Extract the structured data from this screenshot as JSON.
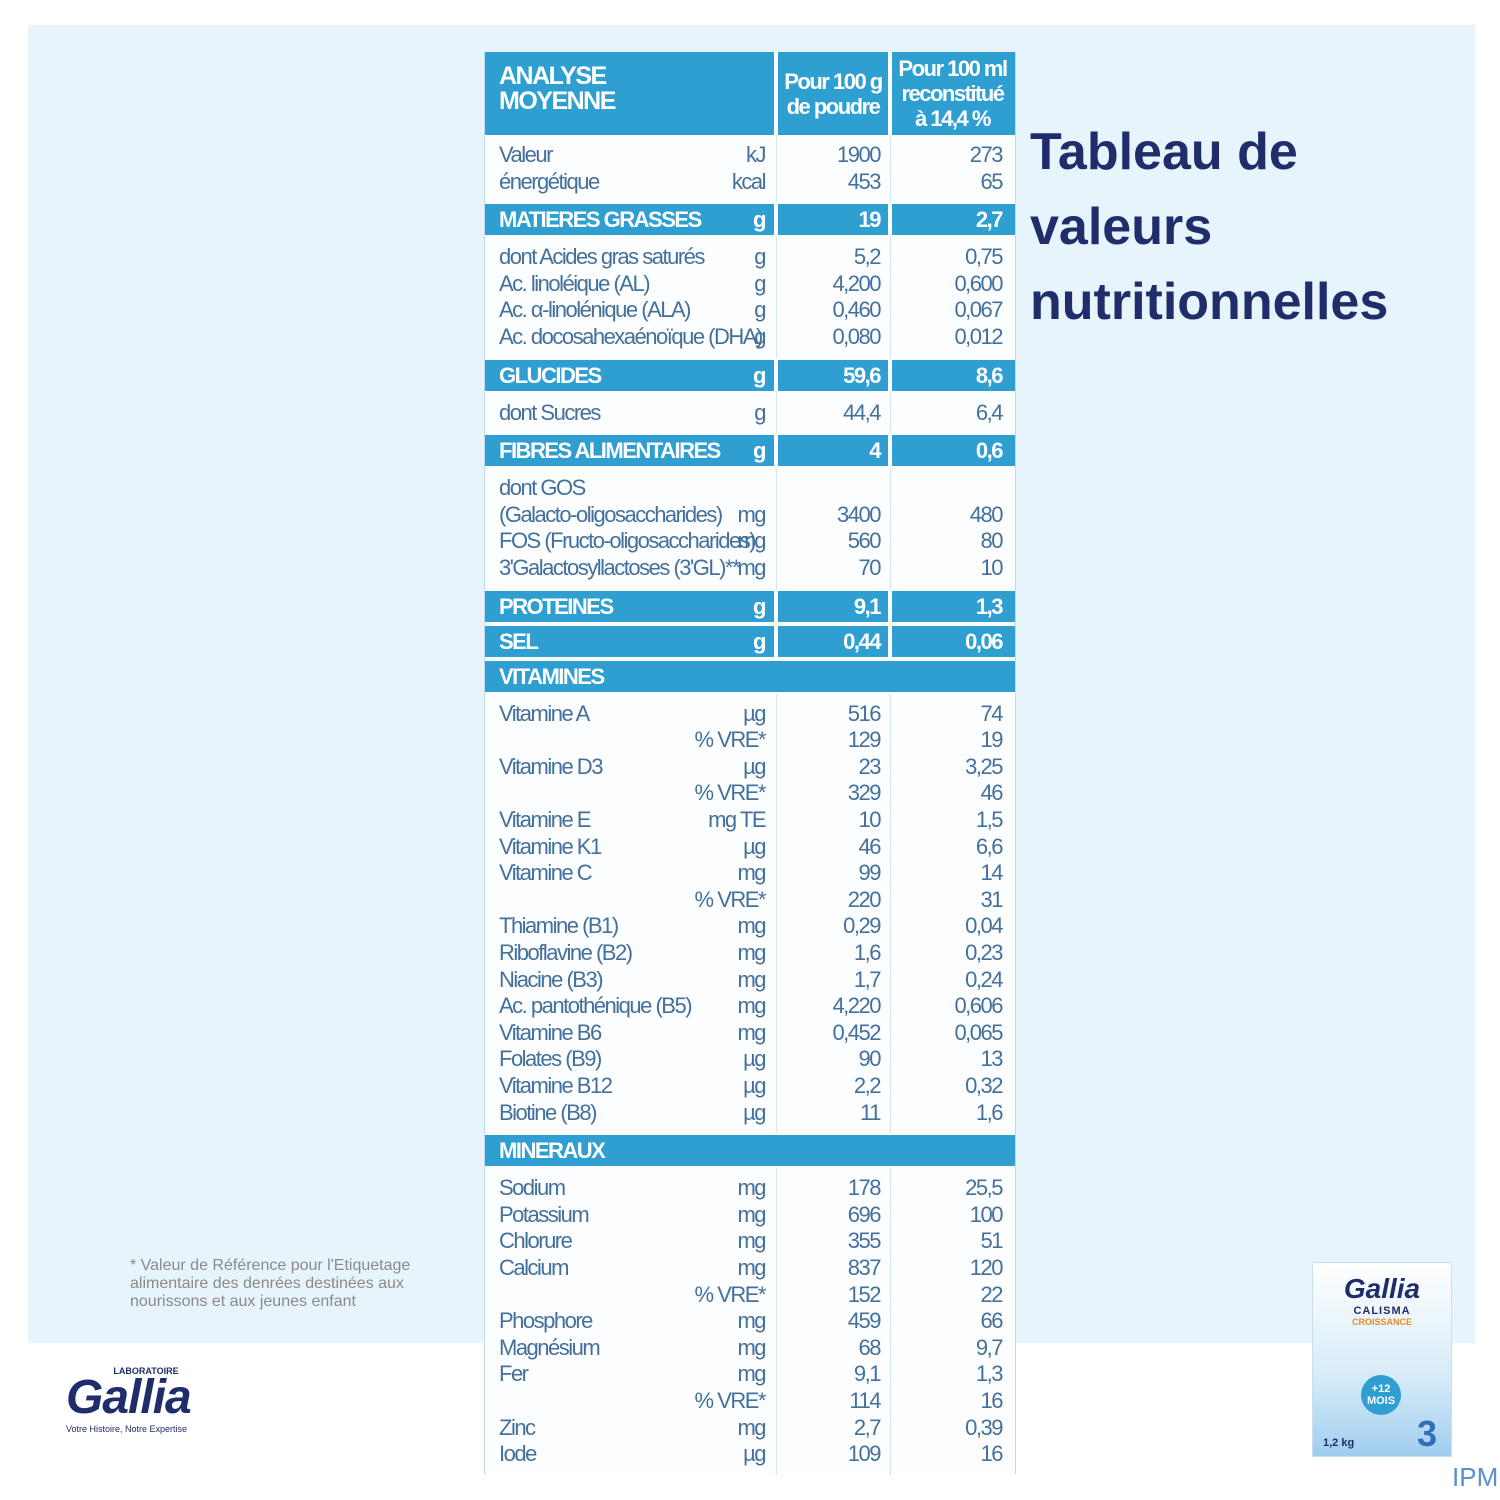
{
  "title": "Tableau de valeurs nutritionnelles",
  "footnote": "* Valeur de Référence pour l'Etiquetage alimentaire des denrées destinées aux nourissons et aux jeunes enfant",
  "logo": {
    "top": "LABORATOIRE",
    "name": "Gallia",
    "tagline": "Votre Histoire, Notre Expertise"
  },
  "product": {
    "brand": "Gallia",
    "line1": "CALISMA",
    "line2": "CROISSANCE",
    "age": "+12 MOIS",
    "weight": "1,2 kg",
    "stage": "3"
  },
  "watermark": "IPM",
  "table": {
    "header": [
      [
        "ANALYSE",
        "MOYENNE"
      ],
      [
        "Pour 100 g",
        "de poudre"
      ],
      [
        "Pour 100 ml",
        "reconstitué",
        "à 14,4 %"
      ]
    ],
    "blocks": [
      {
        "lines": [
          {
            "label": "Valeur",
            "unit": "kJ",
            "v1": "1900",
            "v2": "273"
          },
          {
            "label": "énergétique",
            "unit": "kcal",
            "v1": "453",
            "v2": "65"
          }
        ]
      },
      {
        "heading": {
          "label": "MATIERES GRASSES",
          "unit": "g",
          "v1": "19",
          "v2": "2,7"
        }
      },
      {
        "lines": [
          {
            "label": "dont Acides gras saturés",
            "unit": "g",
            "v1": "5,2",
            "v2": "0,75"
          },
          {
            "label": "Ac. linoléique (AL)",
            "unit": "g",
            "v1": "4,200",
            "v2": "0,600"
          },
          {
            "label": "Ac. α-linolénique (ALA)",
            "unit": "g",
            "v1": "0,460",
            "v2": "0,067"
          },
          {
            "label": "Ac. docosahexaénoïque (DHA)",
            "unit": "g",
            "v1": "0,080",
            "v2": "0,012"
          }
        ]
      },
      {
        "heading": {
          "label": "GLUCIDES",
          "unit": "g",
          "v1": "59,6",
          "v2": "8,6"
        }
      },
      {
        "lines": [
          {
            "label": "dont Sucres",
            "unit": "g",
            "v1": "44,4",
            "v2": "6,4"
          }
        ]
      },
      {
        "heading": {
          "label": "FIBRES ALIMENTAIRES",
          "unit": "g",
          "v1": "4",
          "v2": "0,6"
        }
      },
      {
        "lines": [
          {
            "label": "dont GOS"
          },
          {
            "label": "(Galacto-oligosaccharides)",
            "unit": "mg",
            "v1": "3400",
            "v2": "480"
          },
          {
            "label": "FOS (Fructo-oligosaccharides)",
            "unit": "mg",
            "v1": "560",
            "v2": "80"
          },
          {
            "label": "3'Galactosyllactoses (3'GL)**",
            "unit": "mg",
            "v1": "70",
            "v2": "10"
          }
        ]
      },
      {
        "heading": {
          "label": "PROTEINES",
          "unit": "g",
          "v1": "9,1",
          "v2": "1,3"
        }
      },
      {
        "heading": {
          "label": "SEL",
          "unit": "g",
          "v1": "0,44",
          "v2": "0,06"
        }
      },
      {
        "heading": {
          "label": "VITAMINES"
        }
      },
      {
        "lines": [
          {
            "label": "Vitamine A",
            "unit": "µg",
            "v1": "516",
            "v2": "74"
          },
          {
            "unit": "% VRE*",
            "v1": "129",
            "v2": "19"
          },
          {
            "label": "Vitamine D3",
            "unit": "µg",
            "v1": "23",
            "v2": "3,25"
          },
          {
            "unit": "% VRE*",
            "v1": "329",
            "v2": "46"
          },
          {
            "label": "Vitamine E",
            "unit": "mg TE",
            "v1": "10",
            "v2": "1,5"
          },
          {
            "label": "Vitamine K1",
            "unit": "µg",
            "v1": "46",
            "v2": "6,6"
          },
          {
            "label": "Vitamine C",
            "unit": "mg",
            "v1": "99",
            "v2": "14"
          },
          {
            "unit": "% VRE*",
            "v1": "220",
            "v2": "31"
          },
          {
            "label": "Thiamine (B1)",
            "unit": "mg",
            "v1": "0,29",
            "v2": "0,04"
          },
          {
            "label": "Riboflavine (B2)",
            "unit": "mg",
            "v1": "1,6",
            "v2": "0,23"
          },
          {
            "label": "Niacine (B3)",
            "unit": "mg",
            "v1": "1,7",
            "v2": "0,24"
          },
          {
            "label": "Ac. pantothénique (B5)",
            "unit": "mg",
            "v1": "4,220",
            "v2": "0,606"
          },
          {
            "label": "Vitamine B6",
            "unit": "mg",
            "v1": "0,452",
            "v2": "0,065"
          },
          {
            "label": "Folates (B9)",
            "unit": "µg",
            "v1": "90",
            "v2": "13"
          },
          {
            "label": "Vitamine B12",
            "unit": "µg",
            "v1": "2,2",
            "v2": "0,32"
          },
          {
            "label": "Biotine (B8)",
            "unit": "µg",
            "v1": "11",
            "v2": "1,6"
          }
        ]
      },
      {
        "heading": {
          "label": "MINERAUX"
        }
      },
      {
        "lines": [
          {
            "label": "Sodium",
            "unit": "mg",
            "v1": "178",
            "v2": "25,5"
          },
          {
            "label": "Potassium",
            "unit": "mg",
            "v1": "696",
            "v2": "100"
          },
          {
            "label": "Chlorure",
            "unit": "mg",
            "v1": "355",
            "v2": "51"
          },
          {
            "label": "Calcium",
            "unit": "mg",
            "v1": "837",
            "v2": "120"
          },
          {
            "unit": "% VRE*",
            "v1": "152",
            "v2": "22"
          },
          {
            "label": "Phosphore",
            "unit": "mg",
            "v1": "459",
            "v2": "66"
          },
          {
            "label": "Magnésium",
            "unit": "mg",
            "v1": "68",
            "v2": "9,7"
          },
          {
            "label": "Fer",
            "unit": "mg",
            "v1": "9,1",
            "v2": "1,3"
          },
          {
            "unit": "% VRE*",
            "v1": "114",
            "v2": "16"
          },
          {
            "label": "Zinc",
            "unit": "mg",
            "v1": "2,7",
            "v2": "0,39"
          },
          {
            "label": "Iode",
            "unit": "µg",
            "v1": "109",
            "v2": "16"
          }
        ]
      }
    ]
  }
}
